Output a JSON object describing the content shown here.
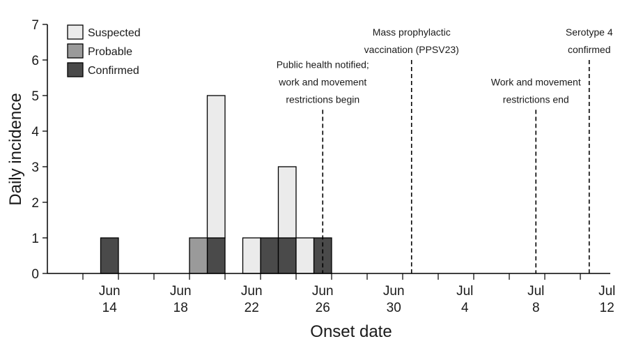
{
  "chart_data": {
    "type": "bar",
    "stacked": true,
    "xlabel": "Onset date",
    "ylabel": "Daily incidence",
    "ylim": [
      0,
      7
    ],
    "yticks": [
      0,
      1,
      2,
      3,
      4,
      5,
      6,
      7
    ],
    "xrange_days": [
      "Jun 11",
      "Jul 13"
    ],
    "xtick_labels": [
      {
        "date": "Jun 14",
        "line1": "Jun",
        "line2": "14"
      },
      {
        "date": "Jun 18",
        "line1": "Jun",
        "line2": "18"
      },
      {
        "date": "Jun 22",
        "line1": "Jun",
        "line2": "22"
      },
      {
        "date": "Jun 26",
        "line1": "Jun",
        "line2": "26"
      },
      {
        "date": "Jun 30",
        "line1": "Jun",
        "line2": "30"
      },
      {
        "date": "Jul 4",
        "line1": "Jul",
        "line2": "4"
      },
      {
        "date": "Jul 8",
        "line1": "Jul",
        "line2": "8"
      },
      {
        "date": "Jul 12",
        "line1": "Jul",
        "line2": "12"
      }
    ],
    "legend": {
      "placement": "top-left",
      "entries": [
        {
          "name": "Suspected",
          "color": "#ebebeb"
        },
        {
          "name": "Probable",
          "color": "#9a9a9a"
        },
        {
          "name": "Confirmed",
          "color": "#4a4a4a"
        }
      ]
    },
    "series": [
      {
        "name": "Suspected",
        "color": "#ebebeb",
        "points": [
          {
            "date": "Jun 20",
            "value": 4
          },
          {
            "date": "Jun 22",
            "value": 1
          },
          {
            "date": "Jun 24",
            "value": 2
          },
          {
            "date": "Jun 25",
            "value": 1
          }
        ]
      },
      {
        "name": "Probable",
        "color": "#9a9a9a",
        "points": [
          {
            "date": "Jun 19",
            "value": 1
          }
        ]
      },
      {
        "name": "Confirmed",
        "color": "#4a4a4a",
        "points": [
          {
            "date": "Jun 14",
            "value": 1
          },
          {
            "date": "Jun 20",
            "value": 1
          },
          {
            "date": "Jun 23",
            "value": 1
          },
          {
            "date": "Jun 24",
            "value": 1
          },
          {
            "date": "Jun 26",
            "value": 1
          }
        ]
      }
    ],
    "stack_order": [
      "Confirmed",
      "Probable",
      "Suspected"
    ],
    "annotations": [
      {
        "date": "Jun 26",
        "y_top": 4.6,
        "lines": [
          "Public health notified;",
          "work and movement",
          "restrictions begin"
        ]
      },
      {
        "date": "Jul 1",
        "y_top": 6.0,
        "lines": [
          "Mass prophylactic",
          "vaccination (PPSV23)"
        ]
      },
      {
        "date": "Jul 8",
        "y_top": 4.6,
        "lines": [
          "Work and movement",
          "restrictions end"
        ]
      },
      {
        "date": "Jul 11",
        "y_top": 6.0,
        "lines": [
          "Serotype 4",
          "confirmed"
        ]
      }
    ]
  }
}
